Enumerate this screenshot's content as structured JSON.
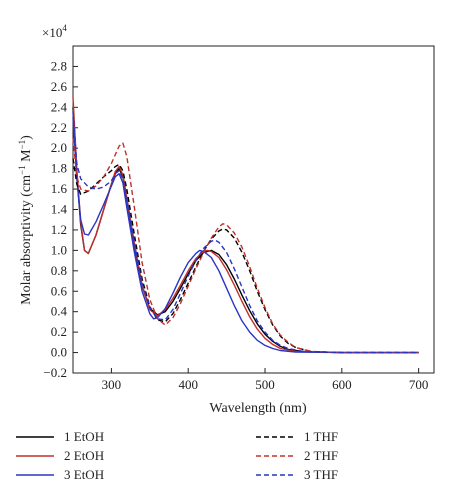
{
  "chart_data": {
    "type": "line",
    "multiplier_label": "×10",
    "multiplier_exp": "4",
    "xlabel": "Wavelength (nm)",
    "ylabel_main": "Molar absorptivity (cm",
    "ylabel_exp1": "−1",
    "ylabel_mid": " M",
    "ylabel_exp2": "−1",
    "ylabel_end": ")",
    "xlim": [
      250,
      720
    ],
    "ylim": [
      -0.2,
      3.0
    ],
    "x_ticks": [
      300,
      400,
      500,
      600,
      700
    ],
    "x_tick_labels": [
      "300",
      "400",
      "500",
      "600",
      "700"
    ],
    "y_ticks": [
      -0.2,
      0.0,
      0.2,
      0.4,
      0.6,
      0.8,
      1.0,
      1.2,
      1.4,
      1.6,
      1.8,
      2.0,
      2.2,
      2.4,
      2.6,
      2.8
    ],
    "y_tick_labels": [
      "−0.2",
      "0.0",
      "0.2",
      "0.4",
      "0.6",
      "0.8",
      "1.0",
      "1.2",
      "1.4",
      "1.6",
      "1.8",
      "2.0",
      "2.2",
      "2.4",
      "2.6",
      "2.8"
    ],
    "grid": false,
    "legend_position": "bottom",
    "series": [
      {
        "name": "1 EtOH",
        "color": "#000000",
        "dash": "solid",
        "points": [
          [
            250,
            2.4
          ],
          [
            255,
            1.75
          ],
          [
            260,
            1.25
          ],
          [
            265,
            1.0
          ],
          [
            270,
            0.97
          ],
          [
            280,
            1.15
          ],
          [
            290,
            1.4
          ],
          [
            300,
            1.65
          ],
          [
            305,
            1.75
          ],
          [
            310,
            1.8
          ],
          [
            315,
            1.72
          ],
          [
            320,
            1.5
          ],
          [
            330,
            1.05
          ],
          [
            340,
            0.65
          ],
          [
            350,
            0.43
          ],
          [
            360,
            0.37
          ],
          [
            370,
            0.4
          ],
          [
            380,
            0.5
          ],
          [
            390,
            0.63
          ],
          [
            400,
            0.77
          ],
          [
            410,
            0.9
          ],
          [
            420,
            0.98
          ],
          [
            430,
            1.0
          ],
          [
            440,
            0.96
          ],
          [
            450,
            0.86
          ],
          [
            460,
            0.72
          ],
          [
            470,
            0.56
          ],
          [
            480,
            0.41
          ],
          [
            490,
            0.28
          ],
          [
            500,
            0.18
          ],
          [
            510,
            0.11
          ],
          [
            520,
            0.06
          ],
          [
            530,
            0.03
          ],
          [
            550,
            0.01
          ],
          [
            600,
            0.0
          ],
          [
            700,
            0.0
          ]
        ]
      },
      {
        "name": "2 EtOH",
        "color": "#c0302a",
        "dash": "solid",
        "points": [
          [
            250,
            2.5
          ],
          [
            255,
            1.8
          ],
          [
            260,
            1.28
          ],
          [
            265,
            1.0
          ],
          [
            270,
            0.97
          ],
          [
            280,
            1.15
          ],
          [
            290,
            1.4
          ],
          [
            300,
            1.65
          ],
          [
            305,
            1.77
          ],
          [
            310,
            1.82
          ],
          [
            315,
            1.74
          ],
          [
            320,
            1.52
          ],
          [
            330,
            1.07
          ],
          [
            340,
            0.66
          ],
          [
            350,
            0.42
          ],
          [
            360,
            0.36
          ],
          [
            370,
            0.42
          ],
          [
            380,
            0.53
          ],
          [
            390,
            0.66
          ],
          [
            400,
            0.8
          ],
          [
            410,
            0.92
          ],
          [
            420,
            0.99
          ],
          [
            425,
            1.0
          ],
          [
            430,
            0.99
          ],
          [
            440,
            0.93
          ],
          [
            450,
            0.81
          ],
          [
            460,
            0.66
          ],
          [
            470,
            0.5
          ],
          [
            480,
            0.35
          ],
          [
            490,
            0.23
          ],
          [
            500,
            0.14
          ],
          [
            510,
            0.08
          ],
          [
            520,
            0.04
          ],
          [
            540,
            0.01
          ],
          [
            600,
            0.0
          ],
          [
            700,
            0.0
          ]
        ]
      },
      {
        "name": "3 EtOH",
        "color": "#2a35c4",
        "dash": "solid",
        "points": [
          [
            250,
            2.3
          ],
          [
            255,
            1.7
          ],
          [
            260,
            1.3
          ],
          [
            265,
            1.16
          ],
          [
            270,
            1.15
          ],
          [
            280,
            1.28
          ],
          [
            290,
            1.45
          ],
          [
            300,
            1.63
          ],
          [
            305,
            1.72
          ],
          [
            310,
            1.75
          ],
          [
            315,
            1.66
          ],
          [
            320,
            1.42
          ],
          [
            330,
            0.98
          ],
          [
            340,
            0.6
          ],
          [
            350,
            0.38
          ],
          [
            355,
            0.33
          ],
          [
            360,
            0.34
          ],
          [
            370,
            0.43
          ],
          [
            380,
            0.58
          ],
          [
            390,
            0.74
          ],
          [
            400,
            0.88
          ],
          [
            410,
            0.97
          ],
          [
            415,
            1.0
          ],
          [
            420,
            0.99
          ],
          [
            430,
            0.93
          ],
          [
            440,
            0.8
          ],
          [
            450,
            0.63
          ],
          [
            460,
            0.46
          ],
          [
            470,
            0.31
          ],
          [
            480,
            0.2
          ],
          [
            490,
            0.12
          ],
          [
            500,
            0.07
          ],
          [
            510,
            0.04
          ],
          [
            520,
            0.02
          ],
          [
            540,
            0.005
          ],
          [
            600,
            0.0
          ],
          [
            700,
            0.0
          ]
        ]
      },
      {
        "name": "1 THF",
        "color": "#000000",
        "dash": "dashed",
        "points": [
          [
            250,
            1.9
          ],
          [
            255,
            1.65
          ],
          [
            260,
            1.55
          ],
          [
            270,
            1.58
          ],
          [
            280,
            1.65
          ],
          [
            290,
            1.72
          ],
          [
            300,
            1.78
          ],
          [
            305,
            1.82
          ],
          [
            310,
            1.84
          ],
          [
            315,
            1.78
          ],
          [
            320,
            1.6
          ],
          [
            330,
            1.15
          ],
          [
            340,
            0.72
          ],
          [
            350,
            0.45
          ],
          [
            360,
            0.32
          ],
          [
            370,
            0.3
          ],
          [
            380,
            0.38
          ],
          [
            390,
            0.52
          ],
          [
            400,
            0.68
          ],
          [
            410,
            0.84
          ],
          [
            420,
            0.99
          ],
          [
            430,
            1.11
          ],
          [
            440,
            1.19
          ],
          [
            445,
            1.21
          ],
          [
            450,
            1.2
          ],
          [
            460,
            1.12
          ],
          [
            470,
            0.98
          ],
          [
            480,
            0.8
          ],
          [
            490,
            0.6
          ],
          [
            500,
            0.42
          ],
          [
            510,
            0.27
          ],
          [
            520,
            0.16
          ],
          [
            530,
            0.09
          ],
          [
            540,
            0.05
          ],
          [
            560,
            0.01
          ],
          [
            600,
            0.0
          ],
          [
            700,
            0.0
          ]
        ]
      },
      {
        "name": "2 THF",
        "color": "#c0302a",
        "dash": "dashed",
        "points": [
          [
            250,
            2.1
          ],
          [
            255,
            1.72
          ],
          [
            260,
            1.6
          ],
          [
            270,
            1.58
          ],
          [
            280,
            1.63
          ],
          [
            290,
            1.72
          ],
          [
            300,
            1.85
          ],
          [
            310,
            2.02
          ],
          [
            315,
            2.05
          ],
          [
            320,
            1.92
          ],
          [
            330,
            1.42
          ],
          [
            340,
            0.88
          ],
          [
            350,
            0.52
          ],
          [
            360,
            0.33
          ],
          [
            370,
            0.27
          ],
          [
            380,
            0.34
          ],
          [
            390,
            0.48
          ],
          [
            400,
            0.65
          ],
          [
            410,
            0.82
          ],
          [
            420,
            0.98
          ],
          [
            430,
            1.12
          ],
          [
            440,
            1.23
          ],
          [
            445,
            1.26
          ],
          [
            450,
            1.25
          ],
          [
            460,
            1.17
          ],
          [
            470,
            1.03
          ],
          [
            480,
            0.84
          ],
          [
            490,
            0.63
          ],
          [
            500,
            0.44
          ],
          [
            510,
            0.28
          ],
          [
            520,
            0.17
          ],
          [
            530,
            0.1
          ],
          [
            540,
            0.05
          ],
          [
            560,
            0.01
          ],
          [
            600,
            0.0
          ],
          [
            700,
            0.0
          ]
        ]
      },
      {
        "name": "3 THF",
        "color": "#2a35c4",
        "dash": "dashed",
        "points": [
          [
            250,
            2.35
          ],
          [
            255,
            1.85
          ],
          [
            260,
            1.7
          ],
          [
            270,
            1.62
          ],
          [
            280,
            1.6
          ],
          [
            290,
            1.62
          ],
          [
            300,
            1.68
          ],
          [
            305,
            1.75
          ],
          [
            310,
            1.78
          ],
          [
            315,
            1.7
          ],
          [
            320,
            1.5
          ],
          [
            330,
            1.08
          ],
          [
            340,
            0.68
          ],
          [
            350,
            0.44
          ],
          [
            360,
            0.33
          ],
          [
            370,
            0.32
          ],
          [
            380,
            0.42
          ],
          [
            390,
            0.58
          ],
          [
            400,
            0.75
          ],
          [
            410,
            0.9
          ],
          [
            420,
            1.02
          ],
          [
            430,
            1.09
          ],
          [
            435,
            1.1
          ],
          [
            440,
            1.08
          ],
          [
            450,
            0.98
          ],
          [
            460,
            0.82
          ],
          [
            470,
            0.64
          ],
          [
            480,
            0.46
          ],
          [
            490,
            0.31
          ],
          [
            500,
            0.2
          ],
          [
            510,
            0.12
          ],
          [
            520,
            0.07
          ],
          [
            530,
            0.04
          ],
          [
            550,
            0.01
          ],
          [
            600,
            0.0
          ],
          [
            700,
            0.0
          ]
        ]
      }
    ]
  }
}
